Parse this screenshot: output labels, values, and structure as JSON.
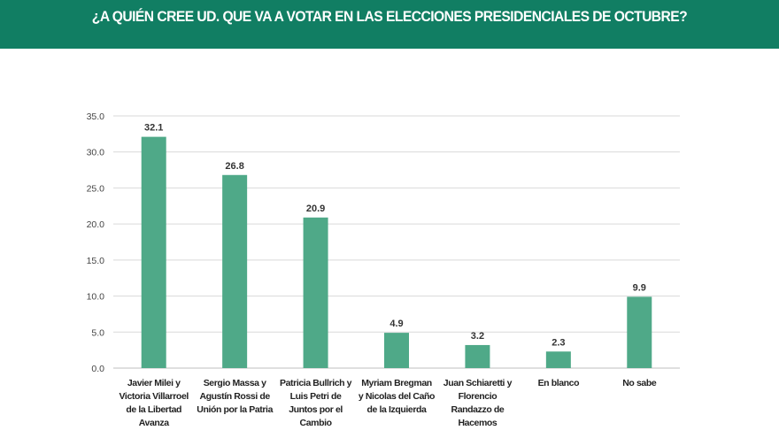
{
  "header": {
    "title": "¿A QUIÉN CREE UD. QUE VA A VOTAR EN LAS ELECCIONES PRESIDENCIALES DE OCTUBRE?"
  },
  "colors": {
    "header": "#117e63",
    "bar": "#4fa988",
    "grid": "#d9d9d9"
  },
  "chart_data": {
    "type": "bar",
    "title": "¿A QUIÉN CREE UD. QUE VA A VOTAR EN LAS ELECCIONES PRESIDENCIALES DE OCTUBRE?",
    "categories": [
      [
        "Javier Milei y",
        "Victoria Villarroel",
        "de la Libertad",
        "Avanza"
      ],
      [
        "Sergio Massa y",
        "Agustín Rossi de",
        "Unión por la Patria"
      ],
      [
        "Patricia Bullrich y",
        "Luis Petri de",
        "Juntos por el",
        "Cambio"
      ],
      [
        "Myriam Bregman",
        "y Nicolas del Caño",
        "de la Izquierda"
      ],
      [
        "Juan Schiaretti y",
        "Florencio",
        "Randazzo de",
        "Hacemos"
      ],
      [
        "En blanco"
      ],
      [
        "No sabe"
      ]
    ],
    "values": [
      32.1,
      26.8,
      20.9,
      4.9,
      3.2,
      2.3,
      9.9
    ],
    "value_labels": [
      "32.1",
      "26.8",
      "20.9",
      "4.9",
      "3.2",
      "2.3",
      "9.9"
    ],
    "yticks": [
      "0.0",
      "5.0",
      "10.0",
      "15.0",
      "20.0",
      "25.0",
      "30.0",
      "35.0"
    ],
    "ylim": [
      0,
      35
    ],
    "grid": true,
    "legend": "none"
  }
}
